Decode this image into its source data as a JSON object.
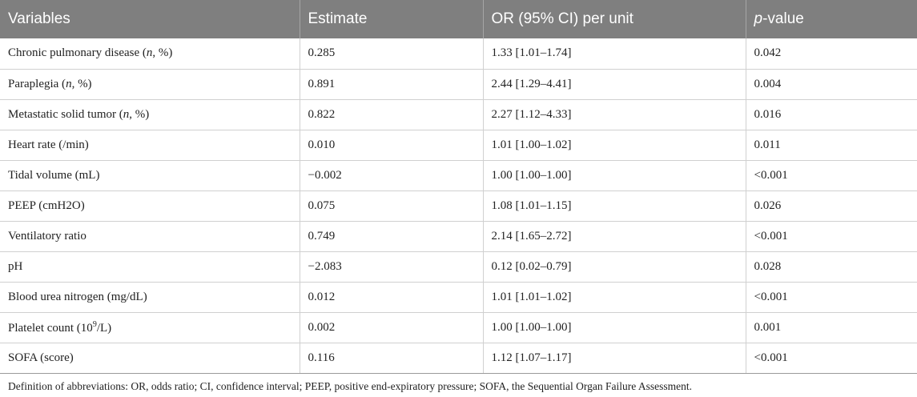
{
  "table": {
    "headers": {
      "variables": "Variables",
      "estimate": "Estimate",
      "or_ci": "OR (95% CI) per unit",
      "p_italic": "p",
      "p_rest": "-value"
    },
    "rows": [
      {
        "var_pre": "Chronic pulmonary disease (",
        "var_it": "n",
        "var_post": ", %)",
        "estimate": "0.285",
        "or_ci": "1.33 [1.01–1.74]",
        "p": "0.042"
      },
      {
        "var_pre": "Paraplegia (",
        "var_it": "n",
        "var_post": ", %)",
        "estimate": "0.891",
        "or_ci": "2.44 [1.29–4.41]",
        "p": "0.004"
      },
      {
        "var_pre": "Metastatic solid tumor (",
        "var_it": "n",
        "var_post": ", %)",
        "estimate": "0.822",
        "or_ci": "2.27 [1.12–4.33]",
        "p": "0.016"
      },
      {
        "var_pre": "Heart rate (/min)",
        "var_it": "",
        "var_post": "",
        "estimate": "0.010",
        "or_ci": "1.01 [1.00–1.02]",
        "p": "0.011"
      },
      {
        "var_pre": "Tidal volume (mL)",
        "var_it": "",
        "var_post": "",
        "estimate": "−0.002",
        "or_ci": "1.00 [1.00–1.00]",
        "p": "<0.001"
      },
      {
        "var_pre": "PEEP (cmH2O)",
        "var_it": "",
        "var_post": "",
        "estimate": "0.075",
        "or_ci": "1.08 [1.01–1.15]",
        "p": "0.026"
      },
      {
        "var_pre": "Ventilatory ratio",
        "var_it": "",
        "var_post": "",
        "estimate": "0.749",
        "or_ci": "2.14 [1.65–2.72]",
        "p": "<0.001"
      },
      {
        "var_pre": "pH",
        "var_it": "",
        "var_post": "",
        "estimate": "−2.083",
        "or_ci": "0.12 [0.02–0.79]",
        "p": "0.028"
      },
      {
        "var_pre": "Blood urea nitrogen (mg/dL)",
        "var_it": "",
        "var_post": "",
        "estimate": "0.012",
        "or_ci": "1.01 [1.01–1.02]",
        "p": "<0.001"
      },
      {
        "var_pre": "Platelet count (10",
        "var_sup": "9",
        "var_post2": "/L)",
        "estimate": "0.002",
        "or_ci": "1.00 [1.00–1.00]",
        "p": "0.001"
      },
      {
        "var_pre": "SOFA (score)",
        "var_it": "",
        "var_post": "",
        "estimate": "0.116",
        "or_ci": "1.12 [1.07–1.17]",
        "p": "<0.001"
      }
    ]
  },
  "footnote": "Definition of abbreviations: OR, odds ratio; CI, confidence interval; PEEP, positive end-expiratory pressure; SOFA, the Sequential Organ Failure Assessment."
}
